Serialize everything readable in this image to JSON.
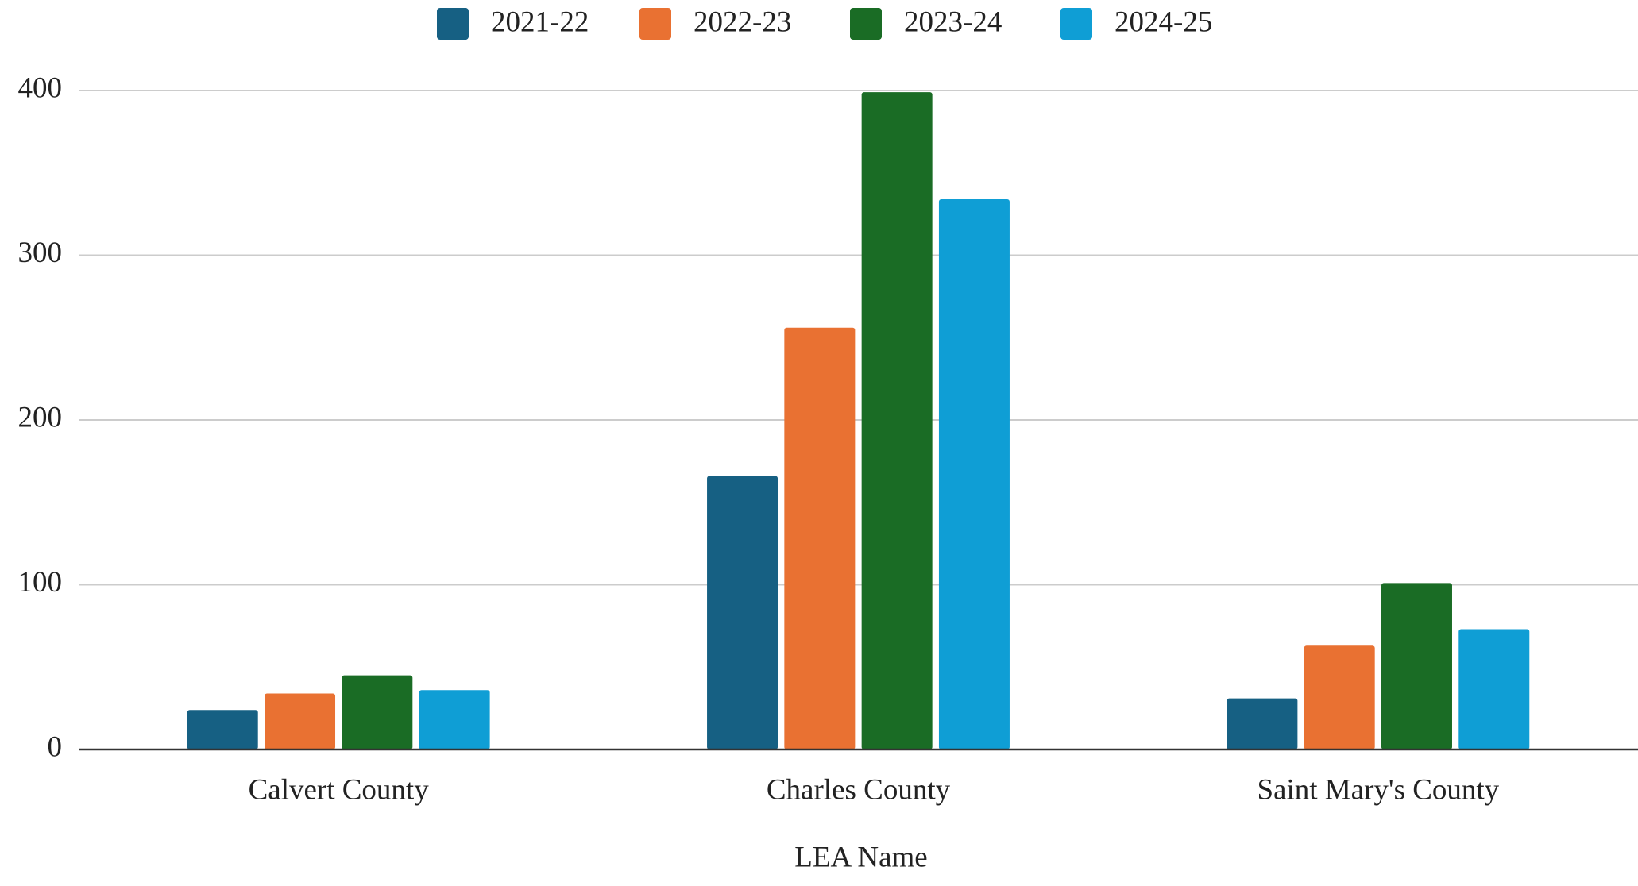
{
  "chart_data": {
    "type": "bar",
    "x_label": "LEA Name",
    "categories": [
      "Calvert County",
      "Charles County",
      "Saint Mary's County"
    ],
    "series": [
      {
        "name": "2021-22",
        "color": "#166083",
        "values": [
          24,
          166,
          31
        ]
      },
      {
        "name": "2022-23",
        "color": "#e97132",
        "values": [
          34,
          256,
          63
        ]
      },
      {
        "name": "2023-24",
        "color": "#1a6c25",
        "values": [
          45,
          399,
          101
        ]
      },
      {
        "name": "2024-25",
        "color": "#0f9ed5",
        "values": [
          36,
          334,
          73
        ]
      }
    ],
    "ylim": [
      0,
      400
    ],
    "yticks": [
      0,
      100,
      200,
      300,
      400
    ],
    "grid": true,
    "legend": "top"
  }
}
